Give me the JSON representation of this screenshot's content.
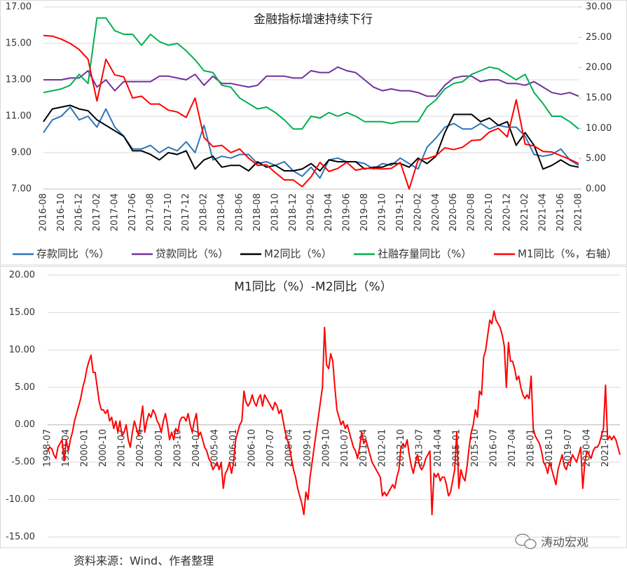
{
  "chart_data": [
    {
      "type": "line",
      "title": "金融指标增速持续下行",
      "categories": [
        "2016-08",
        null,
        "2016-10",
        null,
        "2016-12",
        null,
        "2017-02",
        null,
        "2017-04",
        null,
        "2017-06",
        null,
        "2017-08",
        null,
        "2017-10",
        null,
        "2017-12",
        null,
        "2018-02",
        null,
        "2018-04",
        null,
        "2018-06",
        null,
        "2018-08",
        null,
        "2018-10",
        null,
        "2018-12",
        null,
        "2019-02",
        null,
        "2019-04",
        null,
        "2019-06",
        null,
        "2019-08",
        null,
        "2019-10",
        null,
        "2019-12",
        null,
        "2020-02",
        null,
        "2020-04",
        null,
        "2020-06",
        null,
        "2020-08",
        null,
        "2020-10",
        null,
        "2020-12",
        null,
        "2021-02",
        null,
        "2021-04",
        null,
        "2021-06",
        null,
        "2021-08"
      ],
      "series": [
        {
          "name": "存款同比（%）",
          "color": "#2e75b6",
          "values": [
            10.1,
            10.8,
            11.0,
            11.5,
            10.8,
            11.0,
            10.4,
            11.4,
            10.4,
            9.9,
            9.2,
            9.2,
            9.4,
            9.0,
            9.3,
            9.1,
            9.6,
            9.0,
            10.5,
            8.6,
            8.8,
            8.7,
            8.9,
            8.9,
            8.4,
            8.5,
            8.3,
            8.5,
            8.0,
            7.7,
            8.2,
            7.6,
            8.6,
            8.7,
            8.5,
            8.5,
            8.4,
            8.1,
            8.4,
            8.3,
            8.7,
            8.4,
            8.1,
            9.3,
            9.8,
            10.4,
            10.6,
            10.3,
            10.3,
            10.6,
            10.3,
            10.5,
            10.4,
            10.4,
            9.9,
            8.9,
            8.8,
            8.9,
            9.2,
            8.6,
            8.3
          ]
        },
        {
          "name": "贷款同比（%）",
          "color": "#7030a0",
          "values": [
            13.0,
            13.0,
            13.0,
            13.1,
            13.1,
            13.5,
            12.6,
            13.0,
            12.4,
            12.9,
            12.9,
            12.9,
            12.9,
            13.2,
            13.2,
            13.1,
            13.0,
            13.3,
            12.7,
            13.2,
            12.8,
            12.8,
            12.7,
            12.6,
            12.7,
            13.2,
            13.2,
            13.2,
            13.1,
            13.1,
            13.5,
            13.4,
            13.4,
            13.7,
            13.5,
            13.4,
            13.0,
            12.6,
            12.4,
            12.5,
            12.4,
            12.4,
            12.3,
            12.1,
            12.1,
            12.7,
            13.1,
            13.2,
            13.2,
            12.9,
            13.0,
            13.0,
            12.8,
            12.8,
            12.7,
            12.9,
            12.6,
            12.3,
            12.2,
            12.3,
            12.1
          ]
        },
        {
          "name": "M2同比（%）",
          "color": "#000000",
          "values": [
            10.7,
            11.4,
            11.5,
            11.6,
            11.4,
            11.3,
            10.8,
            10.5,
            10.2,
            9.9,
            9.1,
            9.1,
            8.9,
            8.6,
            9.0,
            8.9,
            9.1,
            8.1,
            8.6,
            8.8,
            8.2,
            8.3,
            8.3,
            8.0,
            8.5,
            8.2,
            8.3,
            8.0,
            8.0,
            8.1,
            8.4,
            8.0,
            8.6,
            8.5,
            8.5,
            8.5,
            8.1,
            8.2,
            8.2,
            8.4,
            8.4,
            8.2,
            8.7,
            8.4,
            8.8,
            10.1,
            11.1,
            11.1,
            11.1,
            10.7,
            10.9,
            10.5,
            10.7,
            9.4,
            10.1,
            9.4,
            8.1,
            8.3,
            8.6,
            8.3,
            8.2
          ]
        },
        {
          "name": "社融存量同比（%）",
          "color": "#00b050",
          "values": [
            12.3,
            12.4,
            12.5,
            12.7,
            13.3,
            12.8,
            16.4,
            16.4,
            15.7,
            15.5,
            15.5,
            14.9,
            15.5,
            15.1,
            14.9,
            15.0,
            14.6,
            14.1,
            13.5,
            13.4,
            12.7,
            12.6,
            12.0,
            11.7,
            11.4,
            11.5,
            11.2,
            10.8,
            10.3,
            10.3,
            11.0,
            10.9,
            11.2,
            11.0,
            11.2,
            11.0,
            10.7,
            10.7,
            10.7,
            10.6,
            10.7,
            10.7,
            10.7,
            11.5,
            11.9,
            12.5,
            12.8,
            12.9,
            13.3,
            13.5,
            13.7,
            13.6,
            13.3,
            13.0,
            13.3,
            12.3,
            11.7,
            11.0,
            11.0,
            10.7,
            10.3
          ]
        },
        {
          "name": "M1同比（%，右轴）",
          "color": "#ff0000",
          "axis": "y2",
          "values": [
            25.3,
            25.2,
            24.7,
            24.0,
            23.0,
            21.4,
            14.5,
            21.4,
            18.8,
            18.5,
            15.0,
            15.3,
            14.0,
            14.0,
            13.0,
            12.7,
            11.8,
            15.0,
            8.5,
            7.0,
            7.2,
            6.0,
            6.6,
            5.1,
            3.9,
            4.0,
            2.7,
            1.5,
            1.5,
            0.4,
            2.0,
            4.4,
            2.9,
            3.4,
            4.4,
            3.1,
            3.4,
            3.4,
            3.3,
            3.4,
            4.4,
            0.0,
            4.8,
            5.0,
            5.5,
            6.8,
            6.5,
            6.9,
            8.0,
            8.1,
            9.4,
            10.0,
            8.6,
            14.7,
            7.4,
            7.1,
            6.2,
            6.1,
            5.5,
            4.9,
            4.2
          ]
        }
      ],
      "ylim": [
        7,
        17
      ],
      "yticks": [
        {
          "value": 7,
          "label": "7.00"
        },
        {
          "value": 9,
          "label": "9.00"
        },
        {
          "value": 11,
          "label": "11.00"
        },
        {
          "value": 13,
          "label": "13.00"
        },
        {
          "value": 15,
          "label": "15.00"
        },
        {
          "value": 17,
          "label": "17.00"
        }
      ],
      "y2lim": [
        0,
        30
      ],
      "y2ticks": [
        {
          "value": 0,
          "label": "0.00"
        },
        {
          "value": 5,
          "label": "5.00"
        },
        {
          "value": 10,
          "label": "10.00"
        },
        {
          "value": 15,
          "label": "15.00"
        },
        {
          "value": 20,
          "label": "20.00"
        },
        {
          "value": 25,
          "label": "25.00"
        },
        {
          "value": 30,
          "label": "30.00"
        }
      ],
      "grid": true,
      "legend": "bottom"
    },
    {
      "type": "line",
      "title": "M1同比（%）-M2同比（%）",
      "color": "#ff0000",
      "categories": [
        "1998-07",
        null,
        null,
        null,
        null,
        null,
        null,
        null,
        null,
        "1999-04",
        null,
        null,
        null,
        null,
        null,
        null,
        null,
        null,
        "2000-01",
        null,
        null,
        null,
        null,
        null,
        null,
        null,
        null,
        "2000-10",
        null,
        null,
        null,
        null,
        null,
        null,
        null,
        null,
        "2001-07",
        null,
        null,
        null,
        null,
        null,
        null,
        null,
        null,
        "2002-04",
        null,
        null,
        null,
        null,
        null,
        null,
        null,
        null,
        "2003-01",
        null,
        null,
        null,
        null,
        null,
        null,
        null,
        null,
        "2003-10",
        null,
        null,
        null,
        null,
        null,
        null,
        null,
        null,
        "2004-07",
        null,
        null,
        null,
        null,
        null,
        null,
        null,
        null,
        "2005-04",
        null,
        null,
        null,
        null,
        null,
        null,
        null,
        null,
        "2006-01",
        null,
        null,
        null,
        null,
        null,
        null,
        null,
        null,
        "2006-10",
        null,
        null,
        null,
        null,
        null,
        null,
        null,
        null,
        "2007-07",
        null,
        null,
        null,
        null,
        null,
        null,
        null,
        null,
        "2008-04",
        null,
        null,
        null,
        null,
        null,
        null,
        null,
        null,
        "2009-01",
        null,
        null,
        null,
        null,
        null,
        null,
        null,
        null,
        "2009-10",
        null,
        null,
        null,
        null,
        null,
        null,
        null,
        null,
        "2010-07",
        null,
        null,
        null,
        null,
        null,
        null,
        null,
        null,
        "2011-04",
        null,
        null,
        null,
        null,
        null,
        null,
        null,
        null,
        "2012-01",
        null,
        null,
        null,
        null,
        null,
        null,
        null,
        null,
        "2012-10",
        null,
        null,
        null,
        null,
        null,
        null,
        null,
        null,
        "2013-07",
        null,
        null,
        null,
        null,
        null,
        null,
        null,
        null,
        "2014-04",
        null,
        null,
        null,
        null,
        null,
        null,
        null,
        null,
        "2015-01",
        null,
        null,
        null,
        null,
        null,
        null,
        null,
        null,
        "2015-10",
        null,
        null,
        null,
        null,
        null,
        null,
        null,
        null,
        "2016-07",
        null,
        null,
        null,
        null,
        null,
        null,
        null,
        null,
        "2017-04",
        null,
        null,
        null,
        null,
        null,
        null,
        null,
        null,
        "2018-01",
        null,
        null,
        null,
        null,
        null,
        null,
        null,
        null,
        "2018-10",
        null,
        null,
        null,
        null,
        null,
        null,
        null,
        null,
        "2019-07",
        null,
        null,
        null,
        null,
        null,
        null,
        null,
        null,
        "2020-04",
        null,
        null,
        null,
        null,
        null,
        null,
        null,
        null,
        "2021-01",
        null,
        null,
        null,
        null,
        null,
        null,
        null
      ],
      "values": [
        -3.5,
        -3,
        -3.2,
        -4,
        -4.5,
        -3,
        -2.5,
        -2,
        -4.8,
        -2,
        -3.5,
        -2,
        -1,
        0.5,
        1.5,
        2.5,
        3.5,
        5,
        6,
        7.5,
        8.5,
        9.3,
        7,
        7,
        5,
        3,
        2,
        2,
        1.5,
        2,
        0.5,
        1,
        -0.5,
        0.5,
        -1,
        0.5,
        -1.5,
        -1,
        0,
        -2,
        -3,
        -1,
        0.5,
        -0.5,
        -1.5,
        0.5,
        2.5,
        -1,
        0.5,
        1.5,
        1,
        2,
        1.5,
        0.5,
        0,
        -1,
        0.5,
        1.5,
        0,
        -2,
        -1,
        -2,
        -0.5,
        -1,
        0.5,
        1,
        1,
        0.5,
        1.5,
        0,
        -1,
        0.5,
        1.5,
        -1.5,
        -1,
        -2,
        -3,
        -3.5,
        -4.5,
        -5,
        -6,
        -5.5,
        -5,
        -6,
        -5,
        -8.5,
        -6.5,
        -6,
        -5,
        -6.5,
        -5,
        -2,
        -1,
        0,
        0.5,
        4.5,
        3,
        2.5,
        3,
        4,
        3,
        2.5,
        3.5,
        4,
        2.5,
        4,
        3.5,
        3,
        2.5,
        2,
        3,
        2.5,
        1.5,
        2,
        0.5,
        -1,
        -2,
        -3,
        -4.5,
        -6,
        -7,
        -8.5,
        -9.5,
        -10.5,
        -12,
        -9,
        -10,
        -7,
        -5,
        -3,
        -1,
        1,
        3,
        5,
        13,
        8,
        7.5,
        9.5,
        8.5,
        5,
        2,
        1,
        0,
        0.5,
        -0.5,
        0,
        -1,
        -2,
        -3,
        -3.5,
        -4.5,
        -3,
        -1,
        -2.5,
        -2,
        -3,
        -4,
        -5,
        -5.5,
        -6,
        -6.5,
        -7,
        -9.5,
        -9,
        -9.5,
        -9,
        -8.5,
        -8,
        -8.5,
        -7,
        -6,
        -3,
        -2.5,
        -3,
        -2,
        -4,
        -5.5,
        -6.5,
        -5,
        -4,
        -5.5,
        -6,
        -5.5,
        -4.5,
        -4,
        -3.5,
        -12,
        -6.5,
        -7,
        -6.5,
        -7.5,
        -7,
        -7,
        -8,
        -9.5,
        -9,
        -7.5,
        -6,
        -1,
        -8.5,
        -6,
        -7,
        -7.5,
        -5.5,
        -3,
        -1,
        0,
        2,
        1,
        4.5,
        4,
        9,
        10,
        12,
        14,
        13.5,
        15.2,
        14,
        13.5,
        13,
        12,
        10.5,
        5,
        11,
        8.5,
        8.5,
        7.5,
        6,
        6.5,
        5,
        4,
        3.5,
        4,
        3.5,
        6.5,
        -0.5,
        -1.5,
        -2,
        -2.5,
        -3.5,
        -5,
        -5.5,
        -6.5,
        -5,
        -6,
        -7,
        -8,
        -6,
        -5,
        -4,
        -5.5,
        -6,
        -5,
        -5,
        -4,
        -4.5,
        -5,
        -4,
        -3,
        -8.5,
        -5,
        -3.5,
        -4,
        -4.5,
        -3.5,
        -3,
        -3,
        -2.5,
        -1.5,
        -0.5,
        5.3,
        -2,
        -1.5,
        -2,
        -1.5,
        -2,
        -3,
        -4
      ],
      "ylim": [
        -15,
        20
      ],
      "yticks": [
        {
          "value": -15,
          "label": "-15.00"
        },
        {
          "value": -10,
          "label": "-10.00"
        },
        {
          "value": -5,
          "label": "-5.00"
        },
        {
          "value": 0,
          "label": "0.00"
        },
        {
          "value": 5,
          "label": "5.00"
        },
        {
          "value": 10,
          "label": "10.00"
        },
        {
          "value": 15,
          "label": "15.00"
        },
        {
          "value": 20,
          "label": "20.00"
        }
      ],
      "grid": true
    }
  ],
  "source": "资料来源：Wind、作者整理",
  "watermark": "涛动宏观"
}
